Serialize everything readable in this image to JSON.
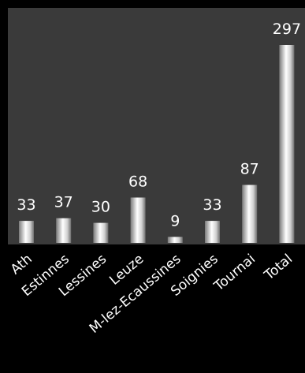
{
  "chart_data": {
    "type": "bar",
    "title": "",
    "xlabel": "",
    "ylabel": "",
    "categories": [
      "Ath",
      "Estinnes",
      "Lessines",
      "Leuze",
      "M-lez-Ecaussines",
      "Soignies",
      "Tournai",
      "Total"
    ],
    "values": [
      33,
      37,
      30,
      68,
      9,
      33,
      87,
      297
    ],
    "ylim": [
      0,
      297
    ],
    "grid": false,
    "legend": "none",
    "colors": {
      "background": "#000000",
      "plot_area": "#3a3a3a",
      "bar_light": "#ffffff",
      "bar_mid": "#c8c8c8",
      "bar_dark": "#6e6e6e",
      "text": "#ffffff"
    }
  }
}
